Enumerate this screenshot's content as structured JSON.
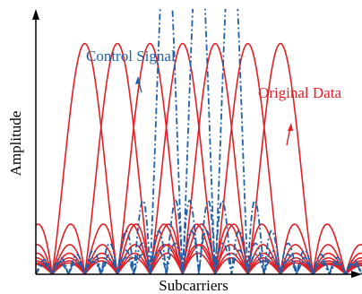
{
  "labels": {
    "control_signal": "Control Signal",
    "original_data": "Original Data",
    "x_axis": "Subcarriers",
    "y_axis": "Amplitude"
  },
  "colors": {
    "axis": "#000000",
    "original_data": "#e31e24",
    "control_signal": "#1f5fa8"
  },
  "chart_data": {
    "type": "line",
    "xlabel": "Subcarriers",
    "ylabel": "Amplitude",
    "grid": false,
    "x_range": [
      -5,
      5
    ],
    "y_range": [
      0,
      1.15
    ],
    "series": [
      {
        "name": "Original Data",
        "style": "solid",
        "centers": [
          -3.5,
          -2.5,
          -1.5,
          -0.5,
          0.5,
          1.5,
          2.5
        ],
        "peak": 1.0,
        "lobe_width": 1.0
      },
      {
        "name": "Control Signal",
        "style": "dash-dot",
        "centers": [
          -1,
          0,
          1
        ],
        "peak": 1.47,
        "lobe_width": 0.5
      }
    ]
  }
}
